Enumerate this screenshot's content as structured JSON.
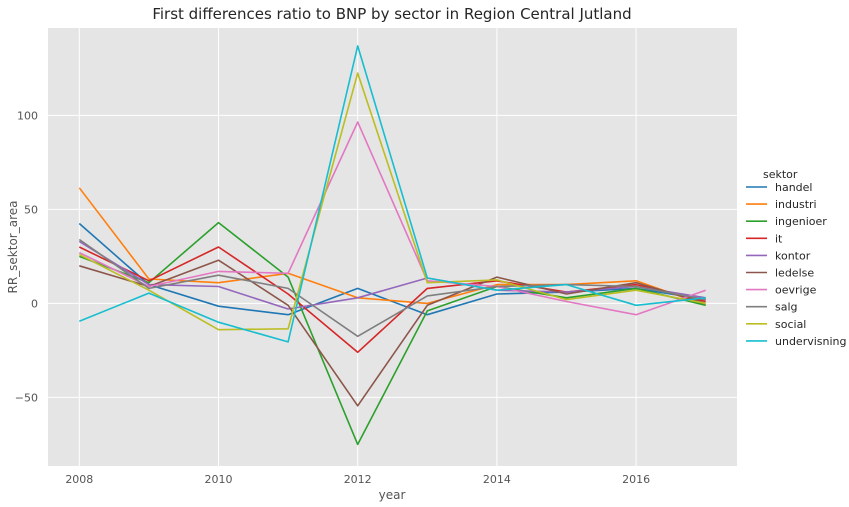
{
  "chart_data": {
    "type": "line",
    "title": "First differences ratio to BNP by sector in Region Central Jutland",
    "xlabel": "year",
    "ylabel": "RR_sektor_area",
    "x": [
      2008,
      2009,
      2010,
      2011,
      2012,
      2013,
      2014,
      2015,
      2016,
      2017
    ],
    "xticks": [
      2008,
      2010,
      2012,
      2014,
      2016
    ],
    "yticks": [
      -50,
      0,
      50,
      100
    ],
    "xlim": [
      2007.55,
      2017.45
    ],
    "ylim": [
      -86.5,
      146.5
    ],
    "grid": true,
    "legend": {
      "title": "sektor",
      "position": "right"
    },
    "series": [
      {
        "name": "handel",
        "color": "#1f77b4",
        "values": [
          42.5,
          10,
          -1.5,
          -6,
          8,
          -6,
          5,
          6,
          8,
          2
        ]
      },
      {
        "name": "industri",
        "color": "#ff7f0e",
        "values": [
          61.5,
          13,
          11,
          16,
          3,
          0,
          10,
          10,
          12,
          -1
        ]
      },
      {
        "name": "ingenioer",
        "color": "#2ca02c",
        "values": [
          25,
          11,
          43,
          14,
          -75,
          -4,
          9,
          3,
          8,
          -1
        ]
      },
      {
        "name": "it",
        "color": "#d62728",
        "values": [
          30,
          12,
          30,
          5,
          -26,
          8,
          12,
          6,
          10,
          1
        ]
      },
      {
        "name": "kontor",
        "color": "#9467bd",
        "values": [
          33,
          10,
          9,
          -3,
          3,
          13.5,
          7,
          6,
          9,
          3
        ]
      },
      {
        "name": "ledelse",
        "color": "#8c564b",
        "values": [
          20,
          9,
          23,
          -1,
          -54.5,
          -1,
          14,
          5,
          11,
          0
        ]
      },
      {
        "name": "oevrige",
        "color": "#e377c2",
        "values": [
          27,
          9,
          17,
          16,
          96.5,
          12,
          9,
          1,
          -6,
          7
        ]
      },
      {
        "name": "salg",
        "color": "#7f7f7f",
        "values": [
          34,
          8,
          15,
          8,
          -17.5,
          4,
          9,
          10,
          9,
          2
        ]
      },
      {
        "name": "social",
        "color": "#bcbd22",
        "values": [
          26,
          7,
          -14,
          -13.5,
          122.5,
          11,
          12.5,
          2,
          7,
          0
        ]
      },
      {
        "name": "undervisning",
        "color": "#17becf",
        "values": [
          -9.5,
          5.5,
          -10,
          -20.5,
          137,
          13.5,
          7,
          10,
          -1,
          3
        ]
      }
    ]
  }
}
